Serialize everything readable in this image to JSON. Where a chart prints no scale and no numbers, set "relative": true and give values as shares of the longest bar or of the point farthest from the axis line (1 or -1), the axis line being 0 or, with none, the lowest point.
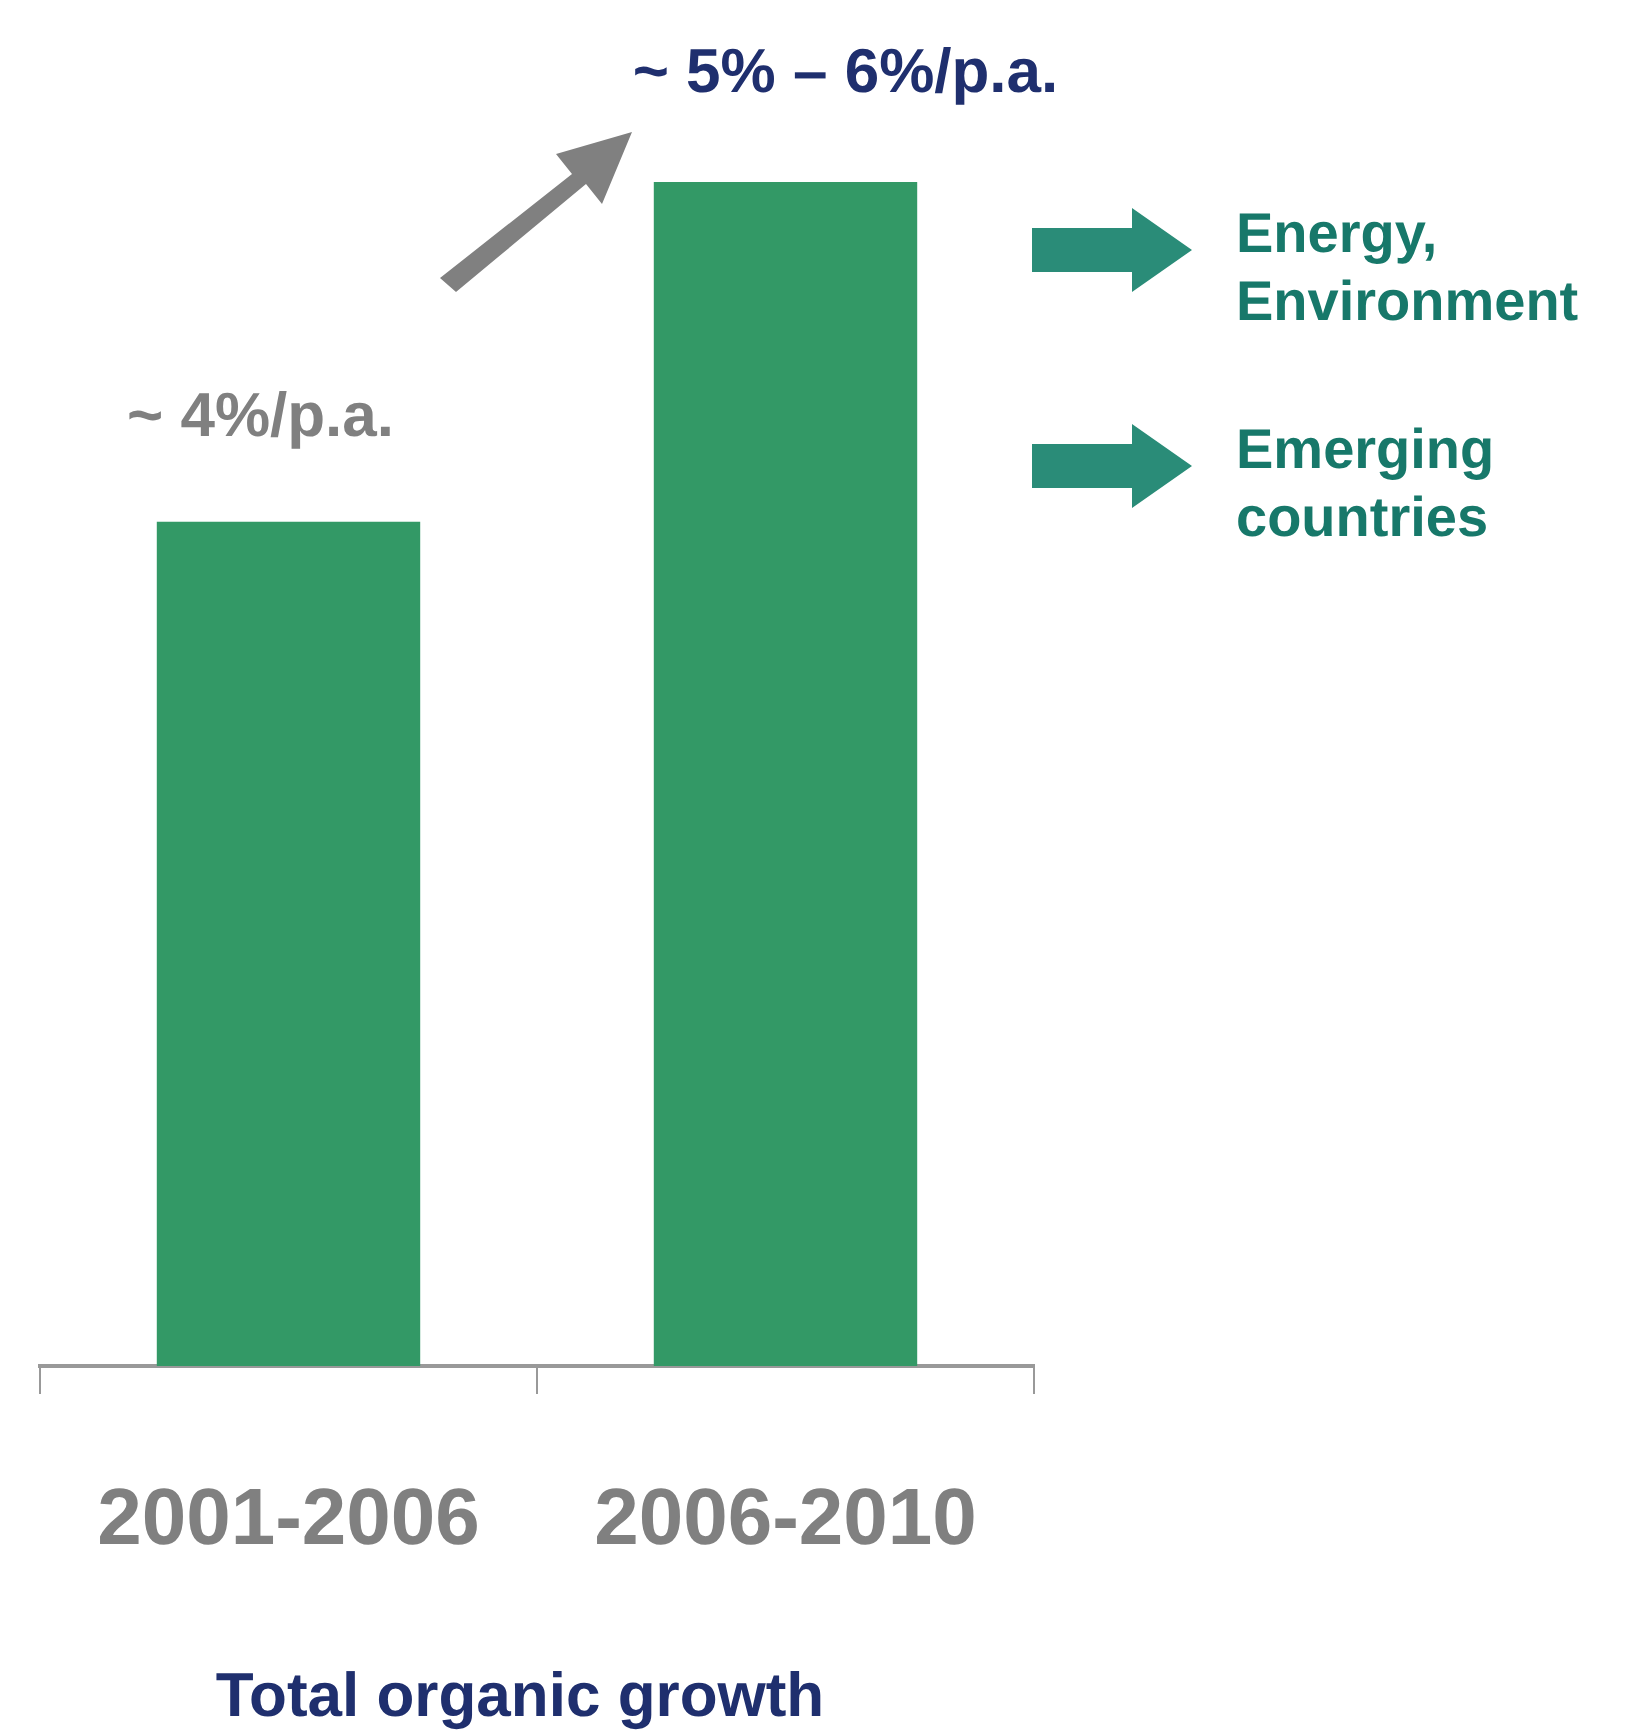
{
  "chart_data": {
    "type": "bar",
    "categories": [
      "2001-2006",
      "2006-2010"
    ],
    "values": [
      0.713,
      1
    ],
    "color": "#339966",
    "relative": true,
    "xlabel": "Total organic growth",
    "legend": false,
    "grid": false,
    "annotations": [
      "~ 4%/p.a.",
      "~ 5% – 6%/p.a.",
      "Energy, Environment",
      "Emerging countries"
    ]
  }
}
